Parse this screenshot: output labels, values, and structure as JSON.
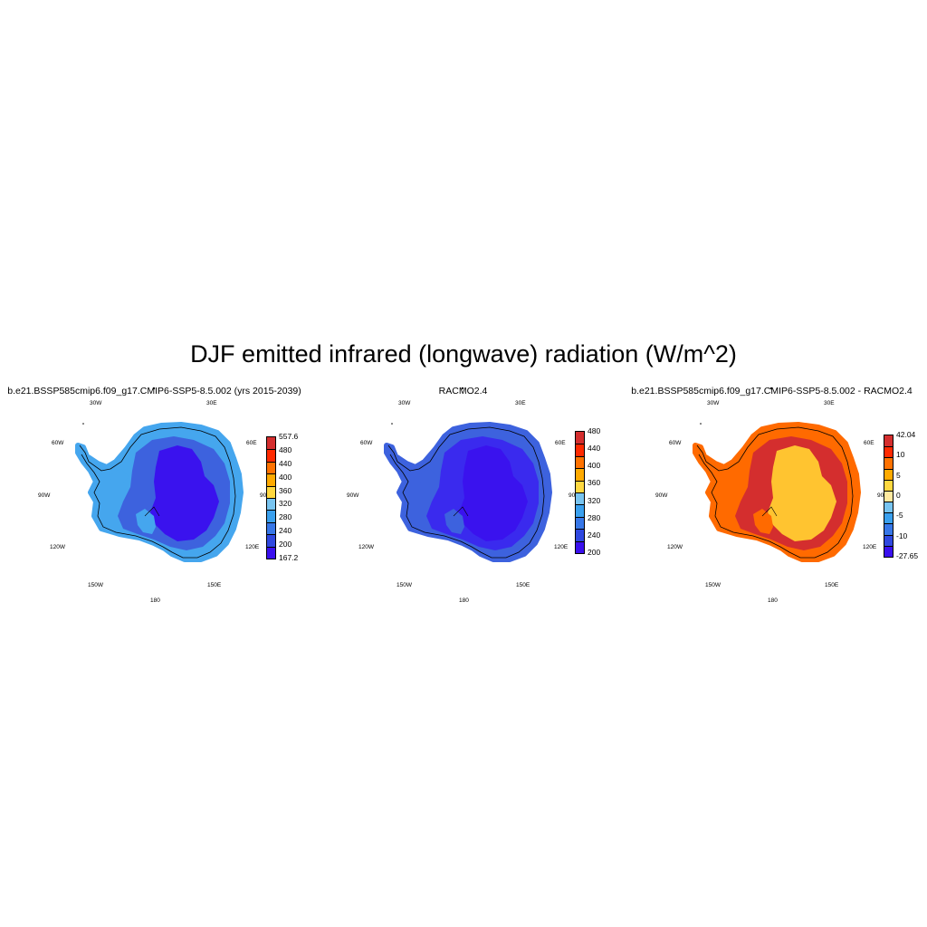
{
  "title": "DJF emitted infrared (longwave) radiation (W/m^2)",
  "lon_labels": [
    "30W",
    "30E",
    "60W",
    "60E",
    "90W",
    "90E",
    "120W",
    "120E",
    "150W",
    "150E",
    "180"
  ],
  "panels": [
    {
      "title": "b.e21.BSSP585cmip6.f09_g17.CMIP6-SSP5-8.5.002 (yrs 2015-2039)",
      "colorbar": {
        "colors": [
          "#3a10ee",
          "#2f48e0",
          "#3777e8",
          "#3aa0ee",
          "#78c4f0",
          "#ffd840",
          "#ffaa00",
          "#ff7200",
          "#ff2a00",
          "#d42e2e"
        ],
        "labels": [
          "167.2",
          "200",
          "240",
          "280",
          "320",
          "360",
          "400",
          "440",
          "480",
          "557.6"
        ]
      },
      "map_palette": {
        "outer": "#45a6ee",
        "mid": "#3d62de",
        "inner": "#3a12ee"
      }
    },
    {
      "title": "RACMO2.4",
      "colorbar": {
        "colors": [
          "#3a10ee",
          "#2f48e0",
          "#3777e8",
          "#3aa0ee",
          "#78c4f0",
          "#ffd840",
          "#ffaa00",
          "#ff7200",
          "#ff2a00",
          "#d42e2e"
        ],
        "labels": [
          "200",
          "240",
          "280",
          "320",
          "360",
          "400",
          "440",
          "480"
        ]
      },
      "map_palette": {
        "outer": "#3d62de",
        "mid": "#3a2aee",
        "inner": "#3a12ee"
      }
    },
    {
      "title": "b.e21.BSSP585cmip6.f09_g17.CMIP6-SSP5-8.5.002 - RACMO2.4",
      "colorbar": {
        "colors": [
          "#3a10ee",
          "#2f48e0",
          "#3777e8",
          "#3aa0ee",
          "#78c4f0",
          "#ffe9a0",
          "#ffd840",
          "#ffaa00",
          "#ff7200",
          "#ff2a00",
          "#d42e2e"
        ],
        "labels": [
          "-27.65",
          "-10",
          "-5",
          "0",
          "5",
          "10",
          "42.04"
        ]
      },
      "map_palette": {
        "outer": "#ff6a00",
        "mid": "#d42e2e",
        "inner": "#ffc430"
      }
    }
  ]
}
